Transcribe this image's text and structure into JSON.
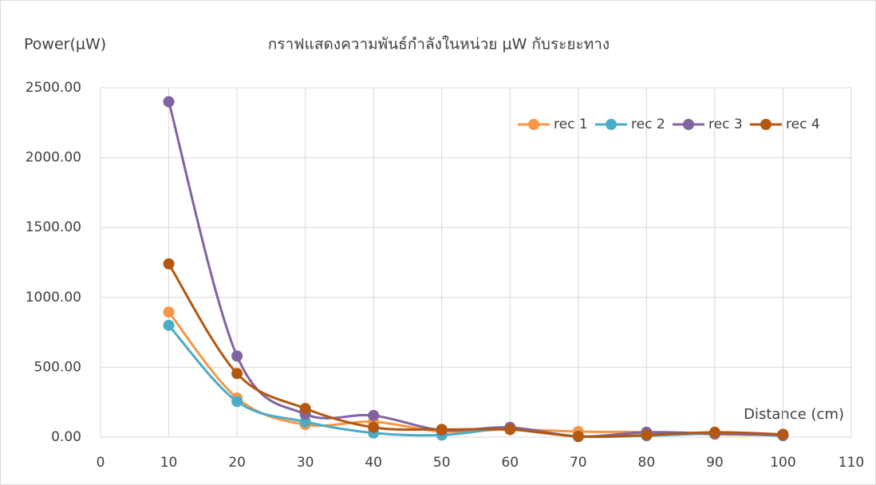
{
  "chart_data": {
    "type": "line",
    "title": "กราฟแสดงความพันธ์กำลังในหน่วย µW กับระยะทาง",
    "y_label": "Power(µW)",
    "x_label": "Distance (cm)",
    "x": [
      10,
      20,
      30,
      40,
      50,
      60,
      70,
      80,
      90,
      100
    ],
    "series": [
      {
        "name": "rec 1",
        "color": "#f79646",
        "values": [
          895,
          280,
          90,
          110,
          40,
          55,
          40,
          35,
          20,
          15
        ]
      },
      {
        "name": "rec 2",
        "color": "#4bacc6",
        "values": [
          800,
          255,
          110,
          30,
          15,
          60,
          5,
          10,
          25,
          10
        ]
      },
      {
        "name": "rec 3",
        "color": "#8064a2",
        "values": [
          2400,
          580,
          165,
          155,
          50,
          70,
          5,
          35,
          25,
          15
        ]
      },
      {
        "name": "rec 4",
        "color": "#b4570f",
        "values": [
          1240,
          455,
          205,
          70,
          55,
          55,
          5,
          15,
          35,
          20
        ]
      }
    ],
    "xlim": [
      0,
      110
    ],
    "xticks": [
      0,
      10,
      20,
      30,
      40,
      50,
      60,
      70,
      80,
      90,
      100,
      110
    ],
    "ylim": [
      0,
      2500
    ],
    "yticks": [
      {
        "value": 0,
        "label": "0.00"
      },
      {
        "value": 500,
        "label": "500.00"
      },
      {
        "value": 1000,
        "label": "1000.00"
      },
      {
        "value": 1500,
        "label": "1500.00"
      },
      {
        "value": 2000,
        "label": "2000.00"
      },
      {
        "value": 2500,
        "label": "2500.00"
      }
    ],
    "grid": true,
    "legend": "top-right",
    "smooth": true
  }
}
